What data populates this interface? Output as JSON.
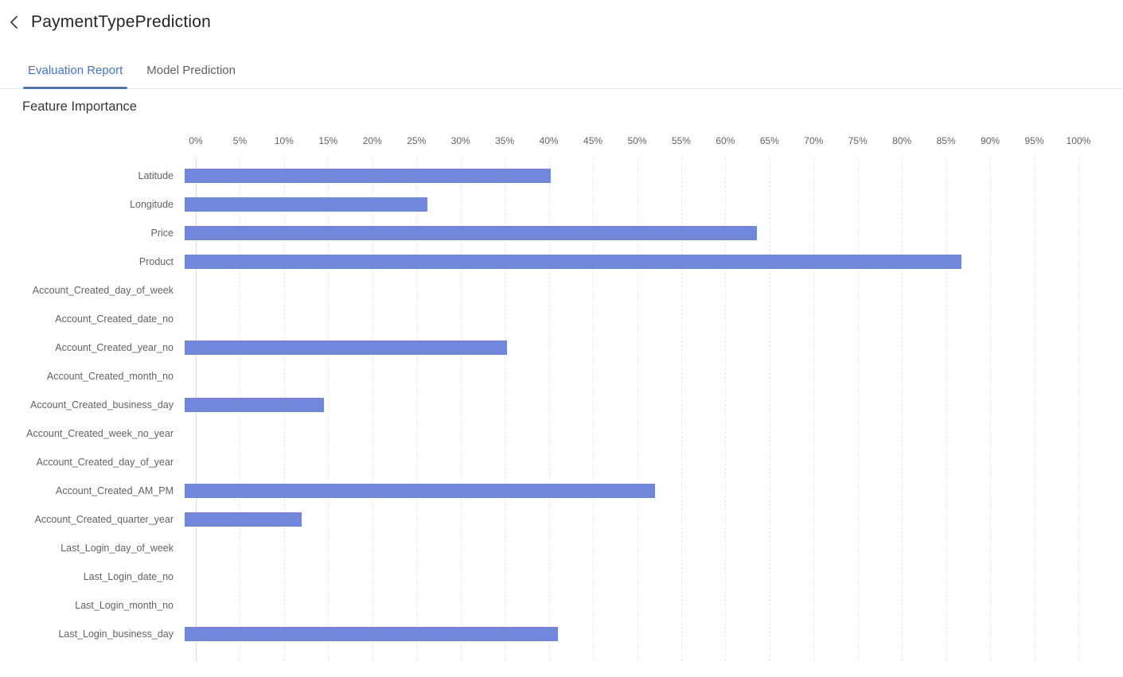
{
  "header": {
    "title": "PaymentTypePrediction",
    "back_icon": "chevron-left"
  },
  "tabs": [
    {
      "label": "Evaluation Report",
      "active": true
    },
    {
      "label": "Model Prediction",
      "active": false
    }
  ],
  "section_title": "Feature Importance",
  "chart_data": {
    "type": "bar",
    "orientation": "horizontal",
    "title": "Feature Importance",
    "xlabel": "",
    "ylabel": "",
    "legend": "none",
    "x_axis": {
      "position": "top",
      "min": 0,
      "max": 100,
      "tick_step": 5,
      "unit": "%",
      "grid": "dashed-vertical",
      "ticks": [
        "0%",
        "5%",
        "10%",
        "15%",
        "20%",
        "25%",
        "30%",
        "35%",
        "40%",
        "45%",
        "50%",
        "55%",
        "60%",
        "65%",
        "70%",
        "75%",
        "80%",
        "85%",
        "90%",
        "95%",
        "100%"
      ]
    },
    "categories": [
      "Latitude",
      "Longitude",
      "Price",
      "Product",
      "Account_Created_day_of_week",
      "Account_Created_date_no",
      "Account_Created_year_no",
      "Account_Created_month_no",
      "Account_Created_business_day",
      "Account_Created_week_no_year",
      "Account_Created_day_of_year",
      "Account_Created_AM_PM",
      "Account_Created_quarter_year",
      "Last_Login_day_of_week",
      "Last_Login_date_no",
      "Last_Login_month_no",
      "Last_Login_business_day"
    ],
    "values": [
      41.5,
      27.5,
      64.8,
      88,
      0,
      0,
      36.5,
      0,
      15.8,
      0,
      0,
      53.3,
      13.3,
      0,
      0,
      0,
      42.3
    ],
    "bar_color": "#7087DB"
  },
  "colors": {
    "accent_blue": "#4275D9",
    "bar_blue": "#7087DB",
    "title_text": "#212529",
    "secondary_text": "#5F6368",
    "divider": "#E7E9EC",
    "gridline": "#E9E9E9"
  }
}
